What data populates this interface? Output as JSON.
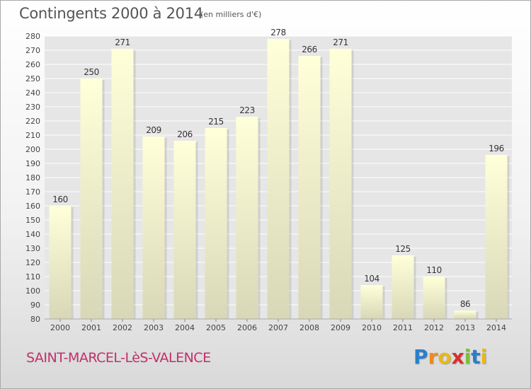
{
  "chart_data": {
    "type": "bar",
    "title": "Contingents 2000 à 2014",
    "unit_label": "(en milliers d'€)",
    "categories": [
      "2000",
      "2001",
      "2002",
      "2003",
      "2004",
      "2005",
      "2006",
      "2007",
      "2008",
      "2009",
      "2010",
      "2011",
      "2012",
      "2013",
      "2014"
    ],
    "values": [
      160,
      250,
      271,
      209,
      206,
      215,
      223,
      278,
      266,
      271,
      104,
      125,
      110,
      86,
      196
    ],
    "ylim": [
      80,
      280
    ],
    "ytick_step": 10,
    "grid": true,
    "data_labels": true
  },
  "footer": {
    "commune": "SAINT-MARCEL-LèS-VALENCE"
  },
  "brand": {
    "letters": [
      "P",
      "r",
      "o",
      "x",
      "i",
      "t",
      "i"
    ],
    "colors": [
      "#2a7fc9",
      "#f08a1c",
      "#e8b81a",
      "#d6312b",
      "#7dbf3a",
      "#2a7fc9",
      "#e8b81a"
    ]
  },
  "colors": {
    "bar_top": "#ffffd9",
    "bar_bottom": "#d8d8b8",
    "grid": "#ffffff",
    "axis_text": "#444444",
    "label_text": "#333333"
  }
}
